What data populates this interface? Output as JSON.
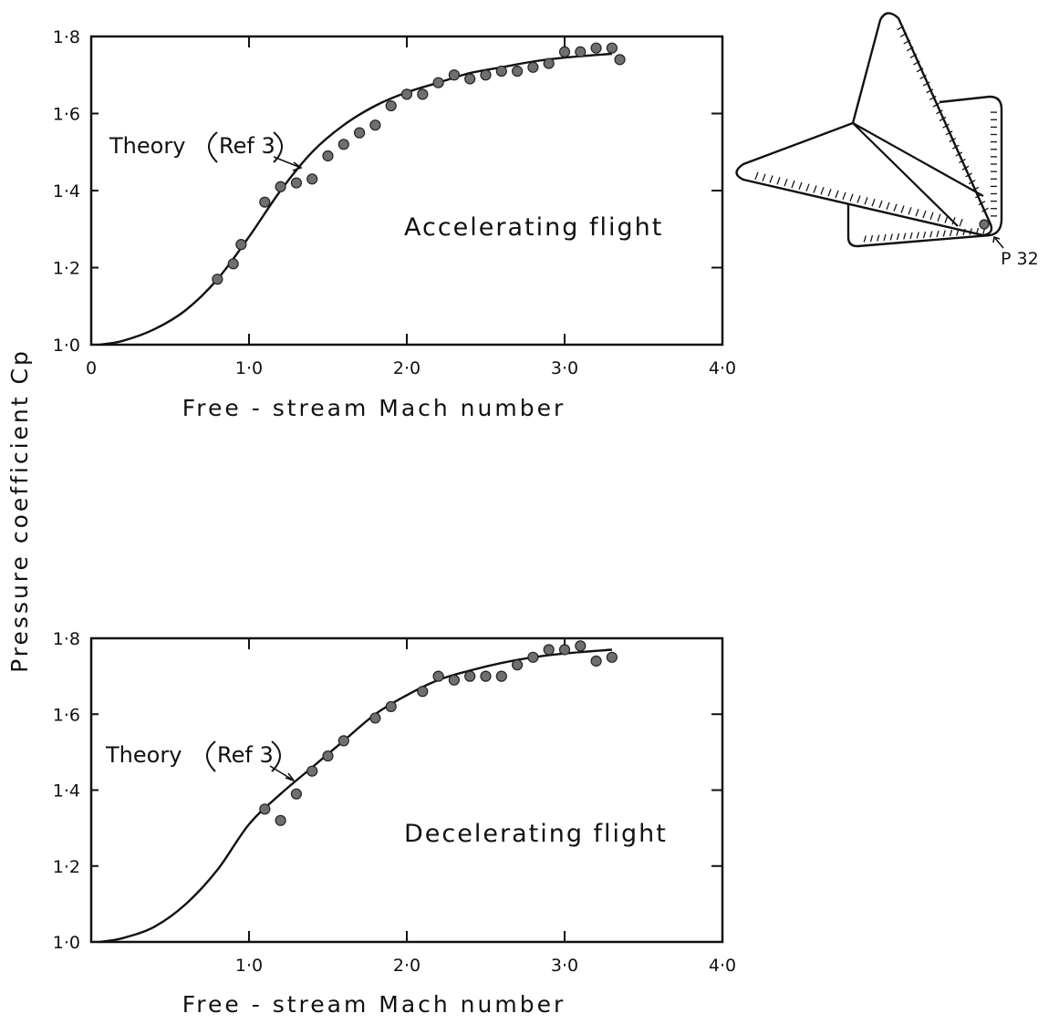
{
  "figure": {
    "ylabel": "Pressure coefficient Cp",
    "model_label": "P 32"
  },
  "chart_data": [
    {
      "type": "scatter",
      "id": "accelerating",
      "annotation": "Accelerating flight",
      "theory_label": "Theory",
      "theory_ref": "Ref 3",
      "xlabel": "Free - stream Mach number",
      "ylabel": "Pressure coefficient Cp",
      "xlim": [
        0,
        4.0
      ],
      "ylim": [
        1.0,
        1.8
      ],
      "xticks": [
        0,
        1.0,
        2.0,
        3.0,
        4.0
      ],
      "xtick_labels": [
        "0",
        "1·0",
        "2·0",
        "3·0",
        "4·0"
      ],
      "yticks": [
        1.0,
        1.2,
        1.4,
        1.6,
        1.8
      ],
      "ytick_labels": [
        "1·0",
        "1·2",
        "1·4",
        "1·6",
        "1·8"
      ],
      "series": [
        {
          "name": "Theory",
          "kind": "line",
          "x": [
            0.05,
            0.2,
            0.4,
            0.6,
            0.8,
            1.0,
            1.2,
            1.4,
            1.6,
            1.8,
            2.0,
            2.2,
            2.4,
            2.6,
            2.8,
            3.0,
            3.3
          ],
          "y": [
            1.0,
            1.01,
            1.04,
            1.09,
            1.17,
            1.28,
            1.4,
            1.5,
            1.57,
            1.62,
            1.655,
            1.68,
            1.705,
            1.72,
            1.735,
            1.745,
            1.755
          ]
        },
        {
          "kind": "points",
          "x": [
            0.8,
            0.9,
            0.95,
            1.1,
            1.2,
            1.3,
            1.4,
            1.5,
            1.6,
            1.7,
            1.8,
            1.9,
            2.0,
            2.1,
            2.2,
            2.3,
            2.4,
            2.5,
            2.6,
            2.7,
            2.8,
            2.9,
            3.0,
            3.1,
            3.2,
            3.3,
            3.35
          ],
          "y": [
            1.17,
            1.21,
            1.26,
            1.37,
            1.41,
            1.42,
            1.43,
            1.49,
            1.52,
            1.55,
            1.57,
            1.62,
            1.65,
            1.65,
            1.68,
            1.7,
            1.69,
            1.7,
            1.71,
            1.71,
            1.72,
            1.73,
            1.76,
            1.76,
            1.77,
            1.77,
            1.74
          ]
        }
      ]
    },
    {
      "type": "scatter",
      "id": "decelerating",
      "annotation": "Decelerating flight",
      "theory_label": "Theory",
      "theory_ref": "Ref 3",
      "xlabel": "Free - stream Mach number",
      "ylabel": "Pressure coefficient Cp",
      "xlim": [
        0,
        4.0
      ],
      "ylim": [
        1.0,
        1.8
      ],
      "xticks": [
        1.0,
        2.0,
        3.0,
        4.0
      ],
      "xtick_labels": [
        "1·0",
        "2·0",
        "3·0",
        "4·0"
      ],
      "yticks": [
        1.0,
        1.2,
        1.4,
        1.6,
        1.8
      ],
      "ytick_labels": [
        "1·0",
        "1·2",
        "1·4",
        "1·6",
        "1·8"
      ],
      "series": [
        {
          "name": "Theory",
          "kind": "line",
          "x": [
            0.05,
            0.2,
            0.4,
            0.6,
            0.8,
            1.0,
            1.2,
            1.4,
            1.6,
            1.8,
            2.0,
            2.2,
            2.4,
            2.6,
            2.8,
            3.0,
            3.3
          ],
          "y": [
            1.0,
            1.01,
            1.04,
            1.1,
            1.19,
            1.31,
            1.39,
            1.46,
            1.53,
            1.6,
            1.65,
            1.69,
            1.715,
            1.735,
            1.75,
            1.76,
            1.77
          ]
        },
        {
          "kind": "points",
          "x": [
            1.1,
            1.2,
            1.3,
            1.4,
            1.5,
            1.6,
            1.8,
            1.9,
            2.1,
            2.2,
            2.3,
            2.4,
            2.5,
            2.6,
            2.7,
            2.8,
            2.9,
            3.0,
            3.1,
            3.2,
            3.3
          ],
          "y": [
            1.35,
            1.32,
            1.39,
            1.45,
            1.49,
            1.53,
            1.59,
            1.62,
            1.66,
            1.7,
            1.69,
            1.7,
            1.7,
            1.7,
            1.73,
            1.75,
            1.77,
            1.77,
            1.78,
            1.74,
            1.75
          ]
        }
      ]
    }
  ]
}
